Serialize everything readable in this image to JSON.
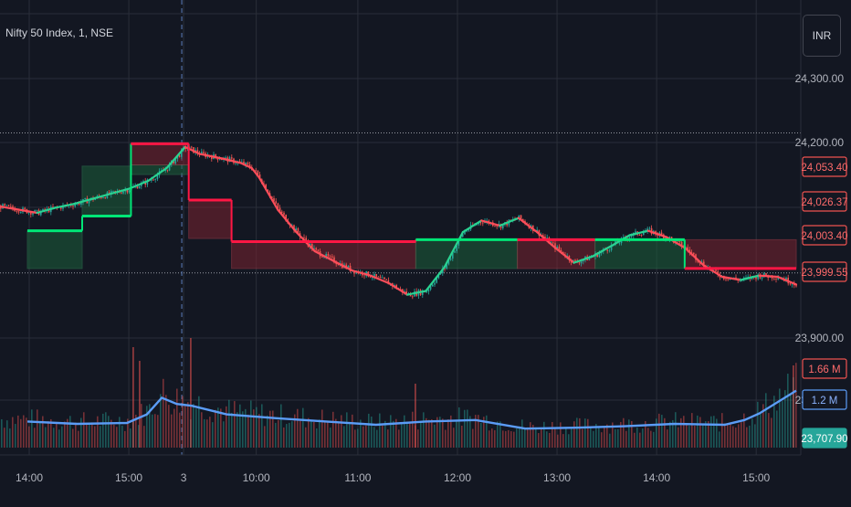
{
  "chart_title": "Nifty 50 Index, 1, NSE",
  "currency_label": "INR",
  "colors": {
    "background": "#131722",
    "grid": "#2a2e39",
    "up": "#26a69a",
    "down": "#ef5350",
    "bull_line": "#00e676",
    "bear_line": "#ff1744",
    "volume_ma": "#5b9cf6",
    "axis_text": "#b2b5be"
  },
  "chart_data": {
    "type": "candlestick",
    "title": "Nifty 50 Index, 1, NSE",
    "price_axis": {
      "tick_labels": [
        "24,300.00",
        "24,200.00",
        "23,900.00",
        "23,800.00"
      ],
      "tick_values": [
        24300,
        24200,
        23900,
        23800
      ],
      "range": [
        23750,
        24330
      ]
    },
    "time_axis": {
      "tick_labels": [
        "14:00",
        "15:00",
        "3",
        "10:00",
        "11:00",
        "12:00",
        "13:00",
        "14:00",
        "15:00"
      ]
    },
    "price_tags": [
      {
        "label": "24,053.40",
        "value": 24053.4,
        "style": "red-outline"
      },
      {
        "label": "24,026.37",
        "value": 24026.37,
        "style": "red-outline"
      },
      {
        "label": "24,003.40",
        "value": 24003.4,
        "style": "red-outline"
      },
      {
        "label": "23,999.55",
        "value": 23999.55,
        "style": "red-outline"
      },
      {
        "label": "1.66 M",
        "value": 1.66,
        "style": "red-outline"
      },
      {
        "label": "1.2 M",
        "value": 1.2,
        "style": "blue-outline"
      },
      {
        "label": "23,707.90",
        "value": 23707.9,
        "style": "green-fill"
      }
    ],
    "horizontal_levels": [
      24215,
      23996
    ],
    "session_break_time": "3",
    "close_series": [
      {
        "t": 0.0,
        "p": 24100
      },
      {
        "t": 0.5,
        "p": 24095
      },
      {
        "t": 1.0,
        "p": 24090
      },
      {
        "t": 1.5,
        "p": 24098
      },
      {
        "t": 2.0,
        "p": 24104
      },
      {
        "t": 2.5,
        "p": 24112
      },
      {
        "t": 3.0,
        "p": 24120
      },
      {
        "t": 3.5,
        "p": 24128
      },
      {
        "t": 4.0,
        "p": 24140
      },
      {
        "t": 4.5,
        "p": 24160
      },
      {
        "t": 5.0,
        "p": 24193
      },
      {
        "t": 5.4,
        "p": 24182
      },
      {
        "t": 6.0,
        "p": 24175
      },
      {
        "t": 6.5,
        "p": 24168
      },
      {
        "t": 6.8,
        "p": 24160
      },
      {
        "t": 7.0,
        "p": 24145
      },
      {
        "t": 7.5,
        "p": 24095
      },
      {
        "t": 8.0,
        "p": 24060
      },
      {
        "t": 8.5,
        "p": 24030
      },
      {
        "t": 9.0,
        "p": 24015
      },
      {
        "t": 9.5,
        "p": 24000
      },
      {
        "t": 10.0,
        "p": 23992
      },
      {
        "t": 10.5,
        "p": 23980
      },
      {
        "t": 11.0,
        "p": 23962
      },
      {
        "t": 11.5,
        "p": 23968
      },
      {
        "t": 12.0,
        "p": 24005
      },
      {
        "t": 12.5,
        "p": 24060
      },
      {
        "t": 13.0,
        "p": 24078
      },
      {
        "t": 13.5,
        "p": 24070
      },
      {
        "t": 14.0,
        "p": 24082
      },
      {
        "t": 14.5,
        "p": 24060
      },
      {
        "t": 15.0,
        "p": 24035
      },
      {
        "t": 15.5,
        "p": 24012
      },
      {
        "t": 16.0,
        "p": 24022
      },
      {
        "t": 16.5,
        "p": 24038
      },
      {
        "t": 17.0,
        "p": 24055
      },
      {
        "t": 17.5,
        "p": 24062
      },
      {
        "t": 18.0,
        "p": 24052
      },
      {
        "t": 18.5,
        "p": 24035
      },
      {
        "t": 19.0,
        "p": 24008
      },
      {
        "t": 19.5,
        "p": 23990
      },
      {
        "t": 20.0,
        "p": 23985
      },
      {
        "t": 20.5,
        "p": 23992
      },
      {
        "t": 21.0,
        "p": 23990
      },
      {
        "t": 21.5,
        "p": 23978
      }
    ],
    "time_ticks": [
      0,
      1,
      1.55,
      2.28,
      3.3,
      4.3,
      5.3,
      6.3,
      7.3
    ],
    "bands": [
      {
        "t0": 0.0,
        "t1": 0.55,
        "top": 24062,
        "bottom": 24003,
        "type": "bull"
      },
      {
        "t0": 0.55,
        "t1": 1.04,
        "top": 24163,
        "bottom": 24085,
        "type": "bull"
      },
      {
        "t0": 1.04,
        "t1": 1.62,
        "top": 24165,
        "bottom": 24150,
        "type": "bull"
      },
      {
        "t0": 1.04,
        "t1": 1.62,
        "top": 24198,
        "bottom": 24165,
        "type": "bear"
      },
      {
        "t0": 1.62,
        "t1": 2.05,
        "top": 24110,
        "bottom": 24050,
        "type": "bear"
      },
      {
        "t0": 2.05,
        "t1": 3.9,
        "top": 24045,
        "bottom": 24003,
        "type": "bear"
      },
      {
        "t0": 3.9,
        "t1": 4.92,
        "top": 24048,
        "bottom": 24003,
        "type": "bull"
      },
      {
        "t0": 4.92,
        "t1": 5.7,
        "top": 24048,
        "bottom": 24003,
        "type": "bear"
      },
      {
        "t0": 5.7,
        "t1": 6.6,
        "top": 24048,
        "bottom": 24003,
        "type": "bull"
      },
      {
        "t0": 6.6,
        "t1": 7.72,
        "top": 24048,
        "bottom": 24003,
        "type": "bear"
      }
    ],
    "regime_line": [
      {
        "t0": 0.0,
        "t1": 0.55,
        "p": 24062,
        "type": "bull"
      },
      {
        "t0": 0.55,
        "t1": 1.04,
        "p": 24085,
        "type": "bull"
      },
      {
        "t0": 1.04,
        "t1": 1.62,
        "p": 24198,
        "type": "bear"
      },
      {
        "t0": 1.62,
        "t1": 2.05,
        "p": 24110,
        "type": "bear"
      },
      {
        "t0": 2.05,
        "t1": 3.9,
        "p": 24045,
        "type": "bear"
      },
      {
        "t0": 3.9,
        "t1": 4.92,
        "p": 24048,
        "type": "bull"
      },
      {
        "t0": 4.92,
        "t1": 5.7,
        "p": 24048,
        "type": "bear"
      },
      {
        "t0": 5.7,
        "t1": 6.6,
        "p": 24048,
        "type": "bull"
      },
      {
        "t0": 6.6,
        "t1": 7.72,
        "p": 24003,
        "type": "bear"
      }
    ],
    "volume_ma_series": [
      {
        "t": 0.0,
        "v": 0.55
      },
      {
        "t": 0.5,
        "v": 0.5
      },
      {
        "t": 1.0,
        "v": 0.52
      },
      {
        "t": 1.2,
        "v": 0.7
      },
      {
        "t": 1.35,
        "v": 1.05
      },
      {
        "t": 1.5,
        "v": 0.92
      },
      {
        "t": 1.65,
        "v": 0.88
      },
      {
        "t": 2.0,
        "v": 0.7
      },
      {
        "t": 2.5,
        "v": 0.62
      },
      {
        "t": 3.0,
        "v": 0.55
      },
      {
        "t": 3.5,
        "v": 0.48
      },
      {
        "t": 4.0,
        "v": 0.55
      },
      {
        "t": 4.5,
        "v": 0.58
      },
      {
        "t": 5.0,
        "v": 0.4
      },
      {
        "t": 5.5,
        "v": 0.42
      },
      {
        "t": 6.0,
        "v": 0.45
      },
      {
        "t": 6.5,
        "v": 0.5
      },
      {
        "t": 7.0,
        "v": 0.48
      },
      {
        "t": 7.2,
        "v": 0.58
      },
      {
        "t": 7.35,
        "v": 0.72
      },
      {
        "t": 7.72,
        "v": 1.2
      }
    ]
  }
}
